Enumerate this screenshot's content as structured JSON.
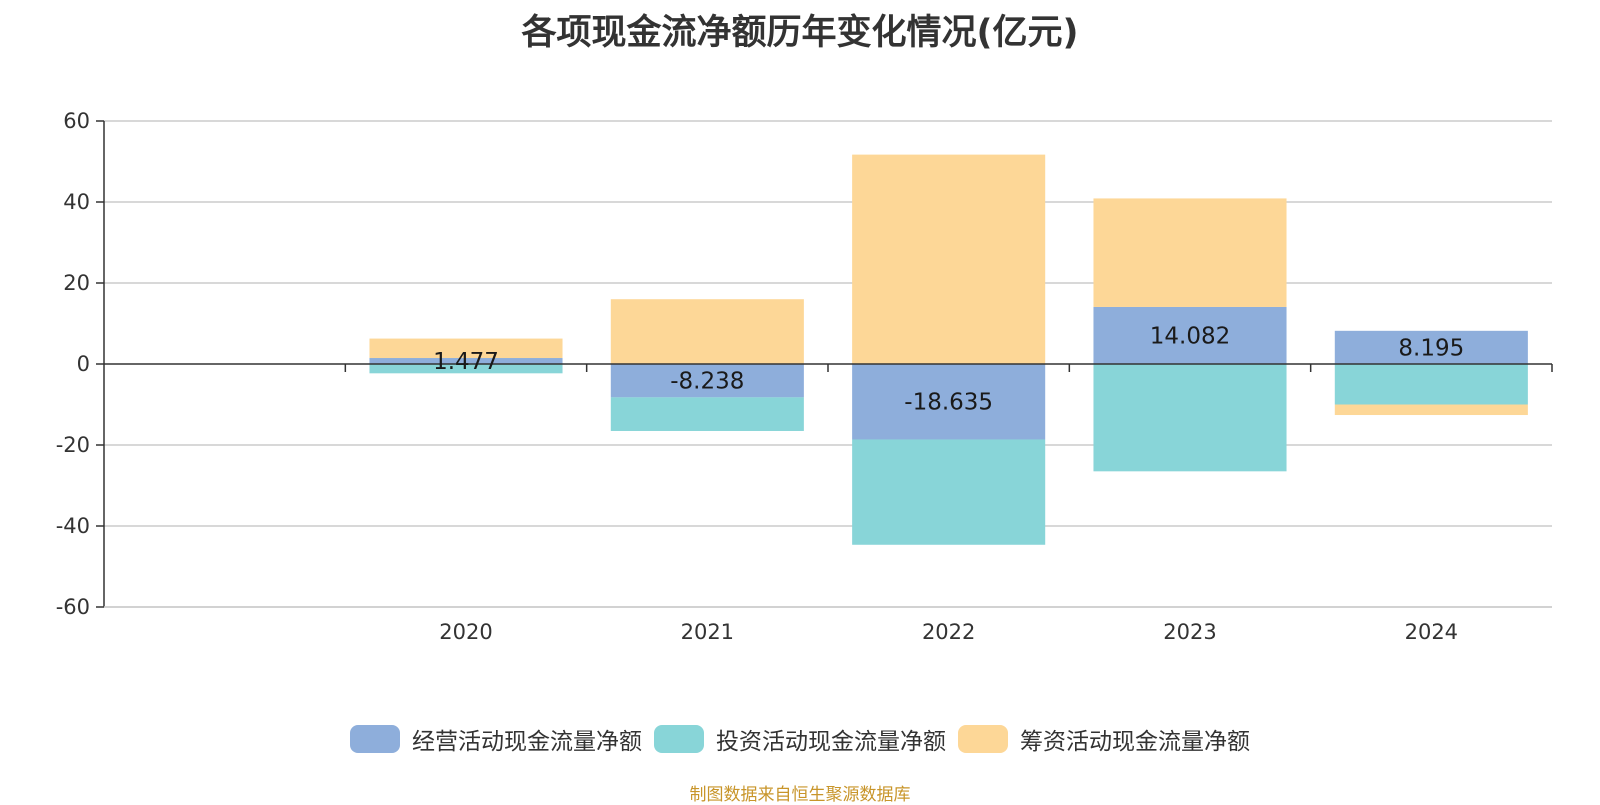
{
  "chart_data": {
    "type": "bar",
    "stacked": true,
    "title": "各项现金流净额历年变化情况(亿元)",
    "categories": [
      "2020",
      "2021",
      "2022",
      "2023",
      "2024"
    ],
    "series": [
      {
        "name": "经营活动现金流量净额",
        "color": "#8eaedb",
        "values": [
          1.477,
          -8.238,
          -18.635,
          14.082,
          8.195
        ],
        "labels": [
          "1.477",
          "-8.238",
          "-18.635",
          "14.082",
          "8.195"
        ]
      },
      {
        "name": "投资活动现金流量净额",
        "color": "#88d5d8",
        "values": [
          -2.3,
          -8.3,
          -26.0,
          -26.5,
          -10.0
        ]
      },
      {
        "name": "筹资活动现金流量净额",
        "color": "#fdd797",
        "values": [
          4.8,
          16.0,
          51.7,
          26.8,
          -2.6
        ]
      }
    ],
    "xlabel": "",
    "ylabel": "",
    "ylim": [
      -60,
      60
    ],
    "yticks": [
      60,
      40,
      20,
      0,
      -20,
      -40,
      -60
    ],
    "grid": true,
    "legend_position": "bottom"
  },
  "source_note": "制图数据来自恒生聚源数据库"
}
